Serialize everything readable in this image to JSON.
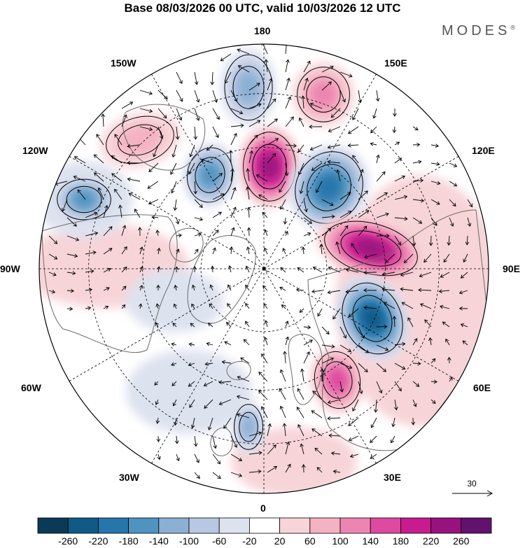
{
  "title": "Base 08/03/2026 00 UTC, valid 10/03/2026 12 UTC",
  "brand": "MODES",
  "brand_mark": "®",
  "longitude_labels": {
    "top": "180",
    "top_left": "150W",
    "top_right": "150E",
    "upper_left": "120W",
    "upper_right": "120E",
    "left": "90W",
    "right": "90E",
    "lower_left": "60W",
    "lower_right": "60E",
    "bottom_left": "30W",
    "bottom_right": "30E",
    "bottom": "0"
  },
  "vector_scale": {
    "label": "30"
  },
  "colorbar": {
    "ticks": [
      "-260",
      "-220",
      "-180",
      "-140",
      "-100",
      "-60",
      "-20",
      "20",
      "60",
      "100",
      "140",
      "180",
      "220",
      "260"
    ],
    "colors": [
      "#0b3a57",
      "#0f5a86",
      "#2676ab",
      "#4f93c0",
      "#8bb0d3",
      "#b9c8e2",
      "#dde2ef",
      "#ffffff",
      "#f7d4d8",
      "#f4b2c2",
      "#ec85b1",
      "#de4aa0",
      "#c81b8e",
      "#98127f",
      "#62126e"
    ]
  },
  "anomalies": [
    {
      "name": "high-north-pacific",
      "value": 260
    },
    {
      "name": "low-east-siberia",
      "value": -220
    },
    {
      "name": "high-central-siberia",
      "value": 240
    },
    {
      "name": "low-west-siberia",
      "value": -240
    },
    {
      "name": "high-east-europe",
      "value": 180
    },
    {
      "name": "low-alaska",
      "value": -140
    },
    {
      "name": "low-canada",
      "value": -160
    },
    {
      "name": "low-north-atlantic",
      "value": -120
    },
    {
      "name": "high-gulf-alaska",
      "value": 80
    },
    {
      "name": "high-northeast-pacific",
      "value": 120
    }
  ]
}
